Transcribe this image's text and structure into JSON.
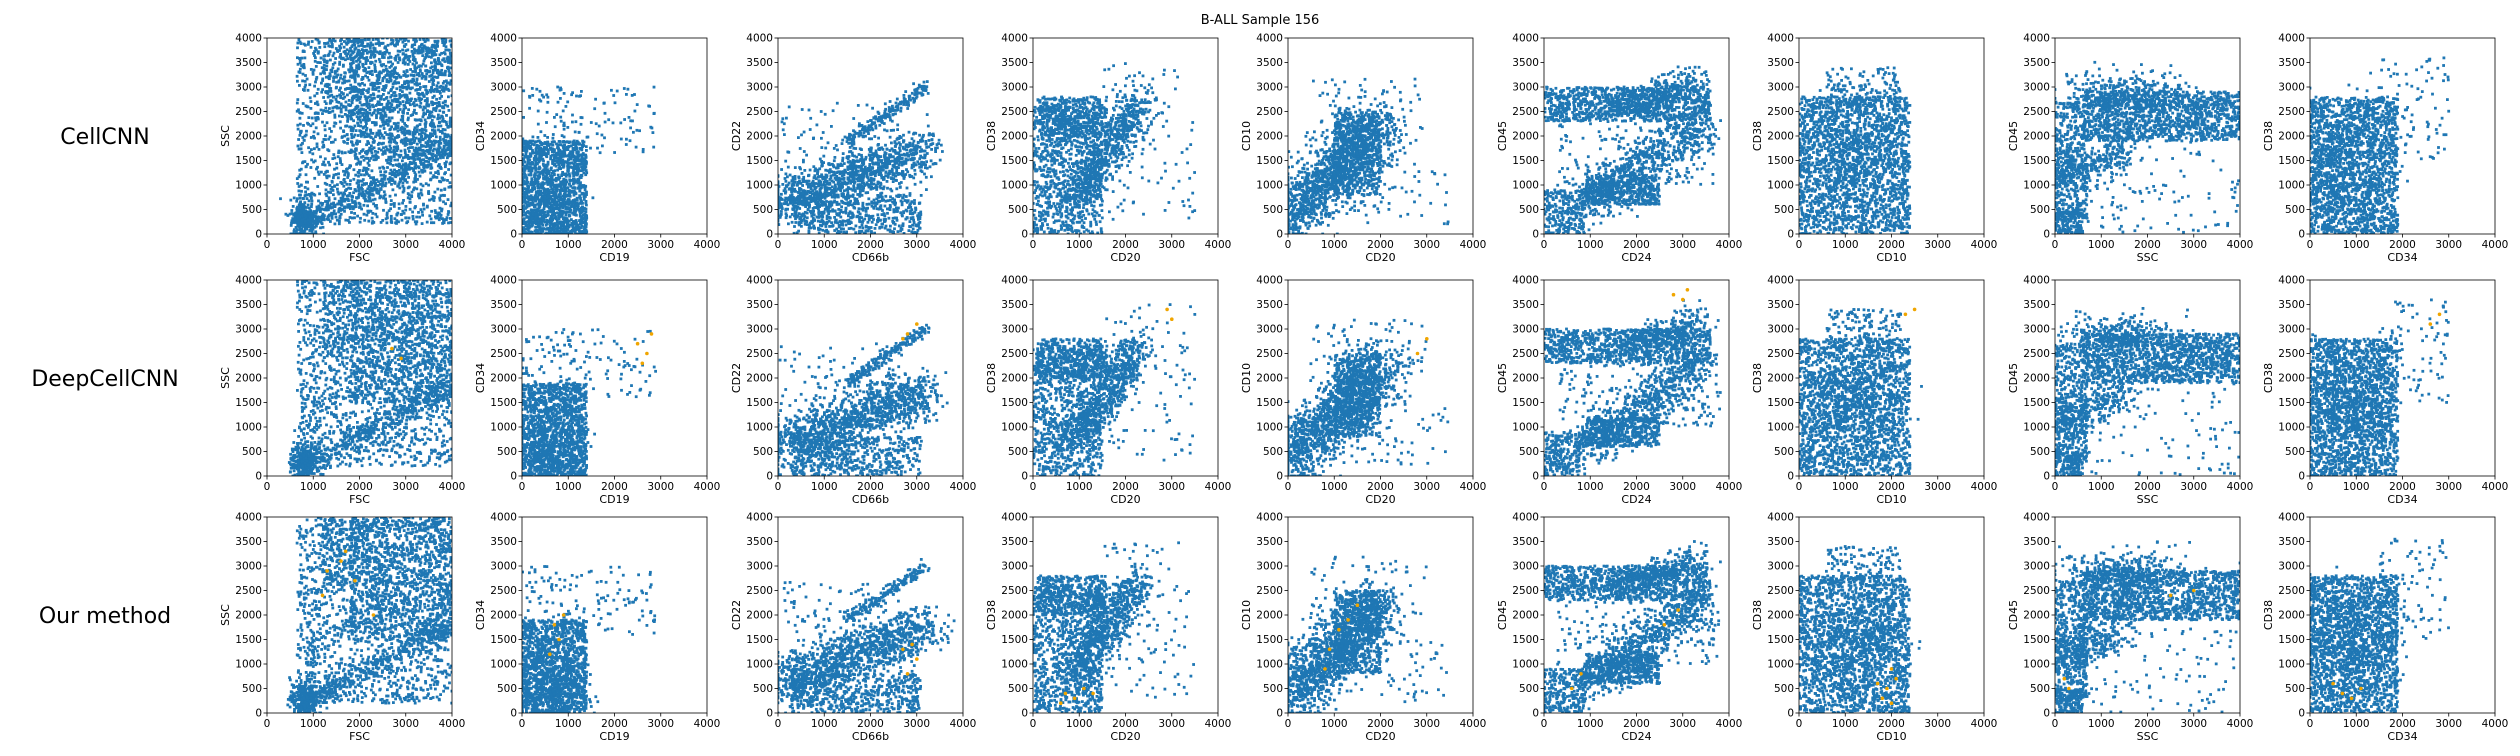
{
  "figure": {
    "title": "B-ALL Sample 156",
    "colors": {
      "background_cells": "#1f77b4",
      "highlighted_cells": "#f0a500",
      "axes": "#000000"
    }
  },
  "chart_data": {
    "type": "scatter",
    "title": "B-ALL Sample 156",
    "rows": [
      "CellCNN",
      "DeepCellCNN",
      "Our method"
    ],
    "series": [
      {
        "name": "",
        "color": "#1f77b4"
      },
      {
        "name": "",
        "color": "#f0a500"
      }
    ],
    "xlim": [
      0,
      4000
    ],
    "ylim": [
      0,
      4000
    ],
    "ticks": [
      0,
      500,
      1000,
      1500,
      2000,
      2500,
      3000,
      3500,
      4000
    ],
    "x_ticks": [
      0,
      1000,
      2000,
      3000,
      4000
    ],
    "grid": false,
    "panels": [
      {
        "xlabel": "FSC",
        "ylabel": "SSC",
        "kind": "fsc_ssc",
        "highlight": [
          [],
          [
            [
              2700,
              2600
            ],
            [
              2900,
              2400
            ]
          ],
          [
            [
              1300,
              2900
            ],
            [
              1600,
              3100
            ],
            [
              1900,
              2700
            ],
            [
              1200,
              2400
            ],
            [
              2300,
              2000
            ],
            [
              1700,
              3300
            ]
          ]
        ]
      },
      {
        "xlabel": "CD19",
        "ylabel": "CD34",
        "kind": "cd19_cd34",
        "highlight": [
          [],
          [
            [
              2500,
              2700
            ],
            [
              2700,
              2500
            ],
            [
              2800,
              2900
            ],
            [
              2600,
              2300
            ]
          ],
          [
            [
              700,
              1800
            ],
            [
              800,
              1500
            ],
            [
              900,
              2000
            ],
            [
              600,
              1200
            ]
          ]
        ]
      },
      {
        "xlabel": "CD66b",
        "ylabel": "CD22",
        "kind": "cd66b_cd22",
        "highlight": [
          [],
          [
            [
              2800,
              2900
            ],
            [
              3000,
              3100
            ],
            [
              2700,
              2800
            ]
          ],
          [
            [
              2900,
              1400
            ],
            [
              3000,
              1100
            ],
            [
              2700,
              1300
            ],
            [
              2800,
              800
            ]
          ]
        ]
      },
      {
        "xlabel": "CD20",
        "ylabel": "CD38",
        "kind": "cd20_cd38",
        "highlight": [
          [],
          [
            [
              2900,
              3400
            ],
            [
              3000,
              3200
            ]
          ],
          [
            [
              700,
              400
            ],
            [
              900,
              300
            ],
            [
              1100,
              500
            ],
            [
              600,
              200
            ],
            [
              1300,
              400
            ]
          ]
        ]
      },
      {
        "xlabel": "CD20",
        "ylabel": "CD10",
        "kind": "cd20_cd10",
        "highlight": [
          [],
          [
            [
              2800,
              2500
            ],
            [
              3000,
              2800
            ]
          ],
          [
            [
              900,
              1300
            ],
            [
              1100,
              1700
            ],
            [
              1300,
              1900
            ],
            [
              1500,
              2200
            ],
            [
              800,
              900
            ]
          ]
        ]
      },
      {
        "xlabel": "CD24",
        "ylabel": "CD45",
        "kind": "cd24_cd45",
        "highlight": [
          [],
          [
            [
              2800,
              3700
            ],
            [
              3000,
              3600
            ],
            [
              3100,
              3800
            ]
          ],
          [
            [
              600,
              500
            ],
            [
              800,
              800
            ],
            [
              2600,
              1800
            ],
            [
              2900,
              2100
            ]
          ]
        ]
      },
      {
        "xlabel": "CD10",
        "ylabel": "CD38",
        "kind": "cd10_cd38",
        "highlight": [
          [],
          [
            [
              2300,
              3300
            ],
            [
              2500,
              3400
            ]
          ],
          [
            [
              1800,
              300
            ],
            [
              1900,
              500
            ],
            [
              2000,
              200
            ],
            [
              2100,
              700
            ],
            [
              1700,
              600
            ],
            [
              2000,
              900
            ]
          ]
        ]
      },
      {
        "xlabel": "SSC",
        "ylabel": "CD45",
        "kind": "ssc_cd45",
        "highlight": [
          [],
          [],
          [
            [
              200,
              700
            ],
            [
              300,
              500
            ],
            [
              3000,
              2500
            ],
            [
              2500,
              2400
            ]
          ]
        ]
      },
      {
        "xlabel": "CD34",
        "ylabel": "CD38",
        "kind": "cd34_cd38",
        "highlight": [
          [],
          [
            [
              2800,
              3300
            ],
            [
              2600,
              3100
            ]
          ],
          [
            [
              700,
              400
            ],
            [
              900,
              300
            ],
            [
              500,
              600
            ],
            [
              1100,
              500
            ]
          ]
        ]
      }
    ]
  }
}
